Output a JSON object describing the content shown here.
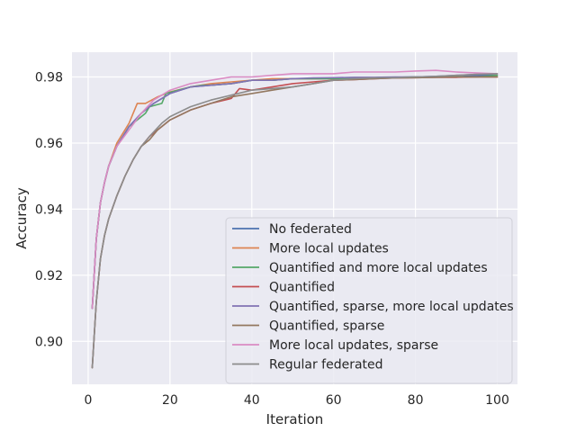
{
  "chart_data": {
    "type": "line",
    "xlabel": "Iteration",
    "ylabel": "Accuracy",
    "xlim": [
      -3.95,
      104.95
    ],
    "ylim": [
      0.887,
      0.9875
    ],
    "x_ticks": [
      0,
      20,
      40,
      60,
      80,
      100
    ],
    "y_ticks": [
      0.9,
      0.92,
      0.94,
      0.96,
      0.98
    ],
    "y_tick_labels": [
      "0.90",
      "0.92",
      "0.94",
      "0.96",
      "0.98"
    ],
    "x_tick_labels": [
      "0",
      "20",
      "40",
      "60",
      "80",
      "100"
    ],
    "grid": true,
    "legend_position": "lower-right",
    "background": "#eaeaf2",
    "series": [
      {
        "name": "No federated",
        "color": "#4c72b0",
        "points": [
          [
            1,
            0.91
          ],
          [
            2,
            0.931
          ],
          [
            3,
            0.942
          ],
          [
            4,
            0.948
          ],
          [
            5,
            0.953
          ],
          [
            7,
            0.959
          ],
          [
            10,
            0.965
          ],
          [
            13,
            0.969
          ],
          [
            16,
            0.972
          ],
          [
            20,
            0.975
          ],
          [
            25,
            0.977
          ],
          [
            30,
            0.9775
          ],
          [
            35,
            0.978
          ],
          [
            40,
            0.979
          ],
          [
            45,
            0.979
          ],
          [
            50,
            0.9795
          ],
          [
            55,
            0.9795
          ],
          [
            60,
            0.9795
          ],
          [
            65,
            0.9797
          ],
          [
            70,
            0.9798
          ],
          [
            75,
            0.9799
          ],
          [
            80,
            0.98
          ],
          [
            85,
            0.98
          ],
          [
            90,
            0.98
          ],
          [
            95,
            0.9805
          ],
          [
            100,
            0.9805
          ]
        ]
      },
      {
        "name": "More local updates",
        "color": "#dd8452",
        "points": [
          [
            1,
            0.91
          ],
          [
            2,
            0.931
          ],
          [
            3,
            0.942
          ],
          [
            4,
            0.948
          ],
          [
            5,
            0.953
          ],
          [
            7,
            0.96
          ],
          [
            10,
            0.966
          ],
          [
            12,
            0.972
          ],
          [
            14,
            0.972
          ],
          [
            17,
            0.974
          ],
          [
            20,
            0.9755
          ],
          [
            25,
            0.977
          ],
          [
            30,
            0.978
          ],
          [
            35,
            0.9785
          ],
          [
            40,
            0.979
          ],
          [
            45,
            0.9795
          ],
          [
            50,
            0.9795
          ],
          [
            55,
            0.9795
          ],
          [
            60,
            0.9795
          ],
          [
            65,
            0.9797
          ],
          [
            70,
            0.9797
          ],
          [
            75,
            0.9798
          ],
          [
            80,
            0.98
          ],
          [
            85,
            0.98
          ],
          [
            90,
            0.98
          ],
          [
            95,
            0.98
          ],
          [
            100,
            0.98
          ]
        ]
      },
      {
        "name": "Quantified and more local updates",
        "color": "#55a868",
        "points": [
          [
            1,
            0.91
          ],
          [
            2,
            0.931
          ],
          [
            3,
            0.942
          ],
          [
            4,
            0.948
          ],
          [
            5,
            0.953
          ],
          [
            7,
            0.959
          ],
          [
            10,
            0.965
          ],
          [
            12,
            0.967
          ],
          [
            14,
            0.969
          ],
          [
            15,
            0.971
          ],
          [
            18,
            0.972
          ],
          [
            19,
            0.975
          ],
          [
            22,
            0.976
          ],
          [
            25,
            0.977
          ],
          [
            28,
            0.9775
          ],
          [
            30,
            0.9775
          ],
          [
            35,
            0.978
          ],
          [
            40,
            0.979
          ],
          [
            45,
            0.979
          ],
          [
            50,
            0.9795
          ],
          [
            55,
            0.9795
          ],
          [
            60,
            0.9795
          ],
          [
            65,
            0.9797
          ],
          [
            70,
            0.9798
          ],
          [
            75,
            0.9799
          ],
          [
            80,
            0.98
          ],
          [
            85,
            0.98
          ],
          [
            90,
            0.98
          ],
          [
            95,
            0.98
          ],
          [
            100,
            0.9805
          ]
        ]
      },
      {
        "name": "Quantified",
        "color": "#c44e52",
        "points": [
          [
            1,
            0.892
          ],
          [
            2,
            0.912
          ],
          [
            3,
            0.925
          ],
          [
            4,
            0.932
          ],
          [
            5,
            0.937
          ],
          [
            7,
            0.944
          ],
          [
            9,
            0.95
          ],
          [
            11,
            0.955
          ],
          [
            13,
            0.959
          ],
          [
            15,
            0.962
          ],
          [
            18,
            0.965
          ],
          [
            20,
            0.967
          ],
          [
            25,
            0.97
          ],
          [
            30,
            0.972
          ],
          [
            35,
            0.9735
          ],
          [
            37,
            0.9765
          ],
          [
            40,
            0.976
          ],
          [
            45,
            0.977
          ],
          [
            50,
            0.978
          ],
          [
            55,
            0.9785
          ],
          [
            60,
            0.979
          ],
          [
            65,
            0.9792
          ],
          [
            70,
            0.9795
          ],
          [
            75,
            0.9797
          ],
          [
            80,
            0.9798
          ],
          [
            85,
            0.9799
          ],
          [
            90,
            0.9799
          ],
          [
            95,
            0.98
          ],
          [
            100,
            0.98
          ]
        ]
      },
      {
        "name": "Quantified, sparse, more local updates",
        "color": "#8172b3",
        "points": [
          [
            1,
            0.91
          ],
          [
            2,
            0.931
          ],
          [
            3,
            0.942
          ],
          [
            4,
            0.948
          ],
          [
            5,
            0.953
          ],
          [
            7,
            0.959
          ],
          [
            10,
            0.965
          ],
          [
            13,
            0.969
          ],
          [
            16,
            0.972
          ],
          [
            20,
            0.975
          ],
          [
            25,
            0.977
          ],
          [
            30,
            0.9775
          ],
          [
            35,
            0.978
          ],
          [
            40,
            0.979
          ],
          [
            45,
            0.979
          ],
          [
            50,
            0.9795
          ],
          [
            55,
            0.9797
          ],
          [
            60,
            0.9798
          ],
          [
            65,
            0.9799
          ],
          [
            70,
            0.9799
          ],
          [
            75,
            0.98
          ],
          [
            80,
            0.98
          ],
          [
            85,
            0.9802
          ],
          [
            90,
            0.9805
          ],
          [
            95,
            0.9808
          ],
          [
            100,
            0.981
          ]
        ]
      },
      {
        "name": "Quantified, sparse",
        "color": "#937860",
        "points": [
          [
            1,
            0.892
          ],
          [
            2,
            0.912
          ],
          [
            3,
            0.925
          ],
          [
            4,
            0.932
          ],
          [
            5,
            0.937
          ],
          [
            7,
            0.944
          ],
          [
            9,
            0.95
          ],
          [
            11,
            0.955
          ],
          [
            13,
            0.959
          ],
          [
            15,
            0.961
          ],
          [
            17,
            0.964
          ],
          [
            20,
            0.967
          ],
          [
            25,
            0.97
          ],
          [
            30,
            0.972
          ],
          [
            35,
            0.974
          ],
          [
            40,
            0.975
          ],
          [
            45,
            0.976
          ],
          [
            50,
            0.977
          ],
          [
            55,
            0.978
          ],
          [
            60,
            0.979
          ],
          [
            65,
            0.9792
          ],
          [
            70,
            0.9795
          ],
          [
            75,
            0.9797
          ],
          [
            80,
            0.9798
          ],
          [
            85,
            0.9799
          ],
          [
            90,
            0.98
          ],
          [
            95,
            0.98
          ],
          [
            100,
            0.98
          ]
        ]
      },
      {
        "name": "More local updates, sparse",
        "color": "#da8bc3",
        "points": [
          [
            1,
            0.91
          ],
          [
            2,
            0.931
          ],
          [
            3,
            0.942
          ],
          [
            4,
            0.948
          ],
          [
            5,
            0.953
          ],
          [
            7,
            0.959
          ],
          [
            10,
            0.964
          ],
          [
            13,
            0.969
          ],
          [
            16,
            0.973
          ],
          [
            20,
            0.976
          ],
          [
            25,
            0.978
          ],
          [
            30,
            0.979
          ],
          [
            35,
            0.98
          ],
          [
            40,
            0.98
          ],
          [
            45,
            0.9805
          ],
          [
            50,
            0.981
          ],
          [
            55,
            0.981
          ],
          [
            60,
            0.981
          ],
          [
            65,
            0.9815
          ],
          [
            70,
            0.9815
          ],
          [
            75,
            0.9815
          ],
          [
            80,
            0.9818
          ],
          [
            85,
            0.982
          ],
          [
            90,
            0.9815
          ],
          [
            95,
            0.9812
          ],
          [
            100,
            0.981
          ]
        ]
      },
      {
        "name": "Regular federated",
        "color": "#8c8c8c",
        "points": [
          [
            1,
            0.892
          ],
          [
            2,
            0.912
          ],
          [
            3,
            0.925
          ],
          [
            4,
            0.932
          ],
          [
            5,
            0.937
          ],
          [
            7,
            0.944
          ],
          [
            9,
            0.95
          ],
          [
            11,
            0.955
          ],
          [
            13,
            0.959
          ],
          [
            15,
            0.962
          ],
          [
            18,
            0.966
          ],
          [
            20,
            0.968
          ],
          [
            25,
            0.971
          ],
          [
            30,
            0.973
          ],
          [
            35,
            0.9745
          ],
          [
            40,
            0.976
          ],
          [
            45,
            0.9765
          ],
          [
            50,
            0.977
          ],
          [
            55,
            0.978
          ],
          [
            60,
            0.979
          ],
          [
            65,
            0.9795
          ],
          [
            70,
            0.9797
          ],
          [
            75,
            0.9798
          ],
          [
            80,
            0.98
          ],
          [
            85,
            0.9802
          ],
          [
            90,
            0.9805
          ],
          [
            95,
            0.9808
          ],
          [
            100,
            0.981
          ]
        ]
      }
    ]
  }
}
